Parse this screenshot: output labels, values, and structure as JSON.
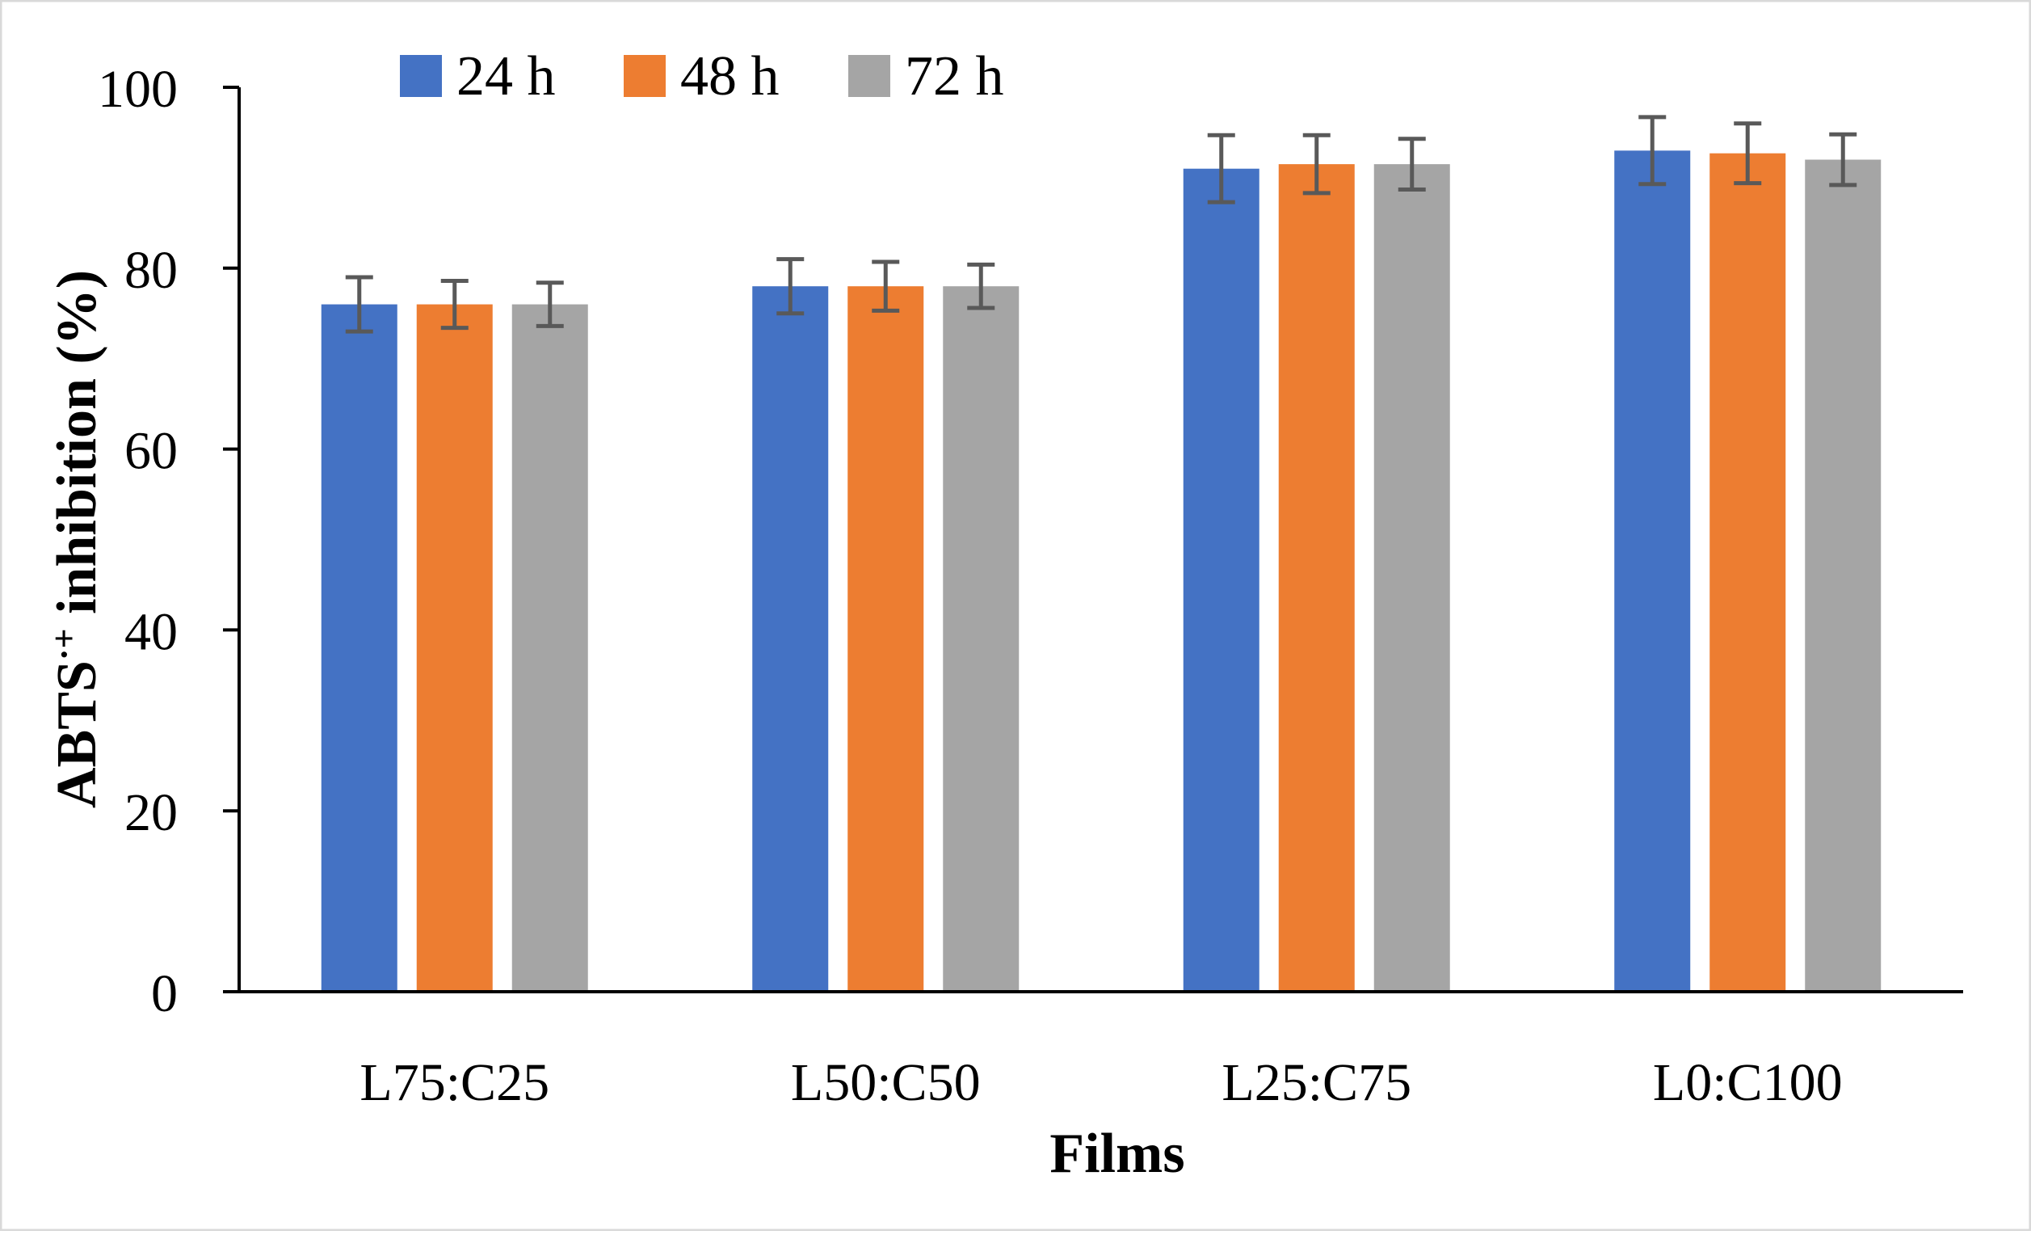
{
  "chart_data": {
    "type": "bar",
    "title": "",
    "xlabel": "Films",
    "ylabel": "ABTS",
    "ylabel_sup": "·+",
    "ylabel_rest": " inhibition (%)",
    "categories": [
      "L75:C25",
      "L50:C50",
      "L25:C75",
      "L0:C100"
    ],
    "series": [
      {
        "name": "24 h",
        "color": "#4472C4",
        "values": [
          76,
          78,
          91,
          93
        ],
        "errors": [
          3.0,
          3.0,
          3.7,
          3.7
        ]
      },
      {
        "name": "48 h",
        "color": "#ED7D31",
        "values": [
          76,
          78,
          91.5,
          92.7
        ],
        "errors": [
          2.6,
          2.7,
          3.2,
          3.3
        ]
      },
      {
        "name": "72 h",
        "color": "#A5A5A5",
        "values": [
          76,
          78,
          91.5,
          92
        ],
        "errors": [
          2.4,
          2.4,
          2.8,
          2.8
        ]
      }
    ],
    "ylim": [
      0,
      100
    ],
    "yticks": [
      0,
      20,
      40,
      60,
      80,
      100
    ],
    "ytick_labels": [
      "0",
      "20",
      "40",
      "60",
      "80",
      "100"
    ],
    "error_bar_color": "#595959",
    "grid": false,
    "legend_position": "top"
  }
}
